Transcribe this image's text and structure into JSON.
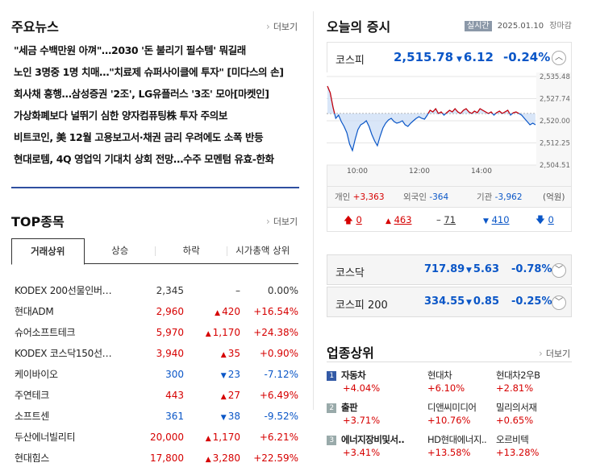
{
  "news": {
    "title": "주요뉴스",
    "more": "더보기",
    "items": [
      "\"세금 수백만원 아껴\"…2030 '돈 불리기 필수템' 뭐길래",
      "노인 3명중 1명 치매…\"치료제 슈퍼사이클에 투자\" [미다스의 손]",
      "회사채 흥행…삼성증권 '2조', LG유플러스 '3조' 모아[마켓인]",
      "가상화폐보다 널뛰기 심한 양자컴퓨팅株 투자 주의보",
      "비트코인, 美 12월 고용보고서·채권 금리 우려에도 소폭 반등",
      "현대로템, 4Q 영업익 기대치 상회 전망…수주 모멘텀 유효-한화"
    ]
  },
  "top": {
    "title": "TOP종목",
    "more": "더보기",
    "tabs": [
      "거래상위",
      "상승",
      "하락",
      "시가총액 상위"
    ],
    "rows": [
      {
        "name": "KODEX 200선물인버…",
        "price": "2,345",
        "change": "–",
        "rate": "0.00%",
        "dir": "flat"
      },
      {
        "name": "현대ADM",
        "price": "2,960",
        "change": "420",
        "rate": "+16.54%",
        "dir": "up"
      },
      {
        "name": "슈어소프트테크",
        "price": "5,970",
        "change": "1,170",
        "rate": "+24.38%",
        "dir": "up"
      },
      {
        "name": "KODEX 코스닥150선…",
        "price": "3,940",
        "change": "35",
        "rate": "+0.90%",
        "dir": "up"
      },
      {
        "name": "케이바이오",
        "price": "300",
        "change": "23",
        "rate": "-7.12%",
        "dir": "down"
      },
      {
        "name": "주연테크",
        "price": "443",
        "change": "27",
        "rate": "+6.49%",
        "dir": "up"
      },
      {
        "name": "소프트센",
        "price": "361",
        "change": "38",
        "rate": "-9.52%",
        "dir": "down"
      },
      {
        "name": "두산에너빌리티",
        "price": "20,000",
        "change": "1,170",
        "rate": "+6.21%",
        "dir": "up"
      },
      {
        "name": "현대힘스",
        "price": "17,800",
        "change": "3,280",
        "rate": "+22.59%",
        "dir": "up"
      }
    ]
  },
  "market": {
    "title": "오늘의 증시",
    "live": "실시간",
    "date": "2025.01.10",
    "status": "장마감",
    "kospi": {
      "name": "코스피",
      "value": "2,515.78",
      "change": "6.12",
      "rate": "-0.24%"
    },
    "chart": {
      "yticks": [
        "2,535.48",
        "2,527.74",
        "2,520.00",
        "2,512.25",
        "2,504.51"
      ],
      "xticks": [
        "10:00",
        "12:00",
        "14:00"
      ]
    },
    "investors": {
      "label_individual": "개인",
      "individual": "+3,363",
      "label_foreign": "외국인",
      "foreign": "-364",
      "label_inst": "기관",
      "inst": "-3,962",
      "unit": "(억원)"
    },
    "breadth": {
      "upper": "0",
      "up": "463",
      "flat": "71",
      "down": "410",
      "lower": "0"
    },
    "kosdaq": {
      "name": "코스닥",
      "value": "717.89",
      "change": "5.63",
      "rate": "-0.78%"
    },
    "kospi200": {
      "name": "코스피 200",
      "value": "334.55",
      "change": "0.85",
      "rate": "-0.25%"
    }
  },
  "sectors": {
    "title": "업종상위",
    "more": "더보기",
    "items": [
      {
        "rank": "1",
        "name": "자동차",
        "rate": "+4.04%",
        "s1": "현대차",
        "r1": "+6.10%",
        "s2": "현대차2우B",
        "r2": "+2.81%"
      },
      {
        "rank": "2",
        "name": "출판",
        "rate": "+3.71%",
        "s1": "디앤씨미디어",
        "r1": "+10.76%",
        "s2": "밀리의서재",
        "r2": "+0.65%"
      },
      {
        "rank": "3",
        "name": "에너지장비및서..",
        "rate": "+3.41%",
        "s1": "HD현대에너지..",
        "r1": "+13.58%",
        "s2": "오르비텍",
        "r2": "+13.28%"
      }
    ]
  },
  "colors": {
    "up": "#d60000",
    "down": "#0a56c7",
    "accent": "#335aa6"
  }
}
